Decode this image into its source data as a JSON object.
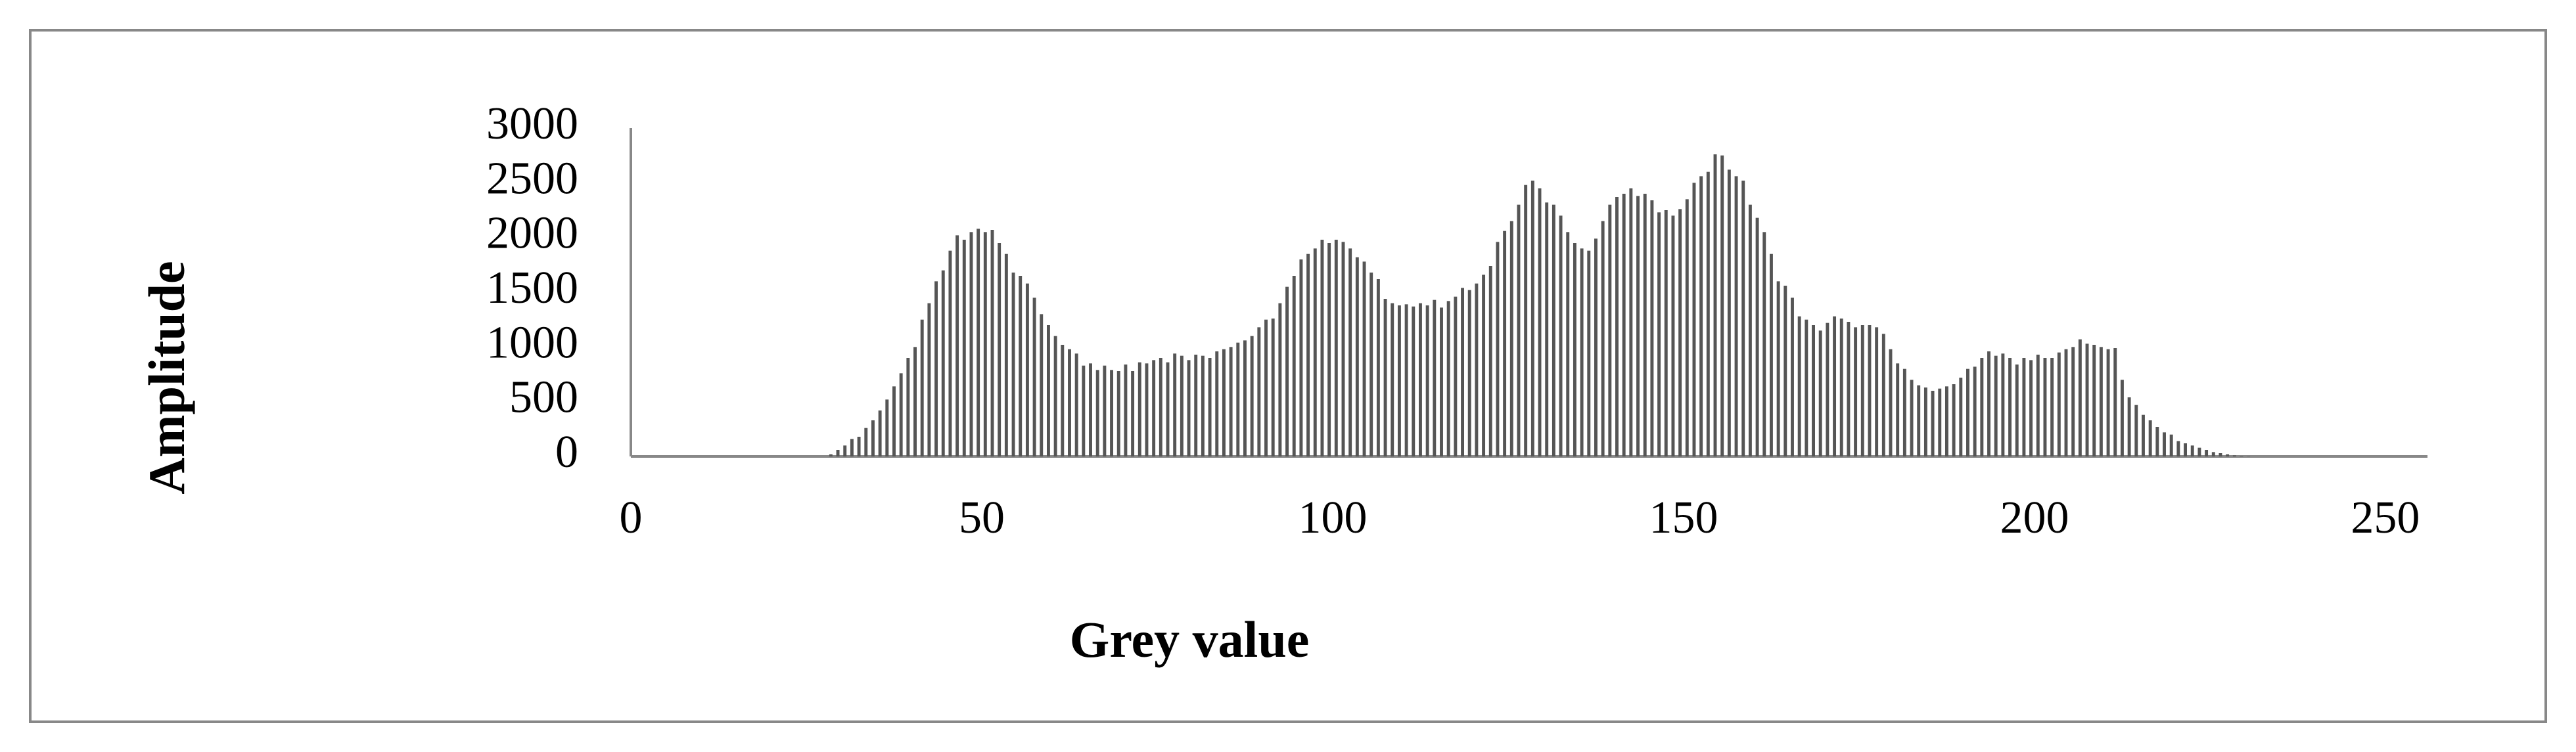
{
  "chart_data": {
    "type": "bar",
    "x_label": "Grey value",
    "y_label": "Amplitude",
    "x": [
      0,
      1,
      2,
      3,
      4,
      5,
      6,
      7,
      8,
      9,
      10,
      11,
      12,
      13,
      14,
      15,
      16,
      17,
      18,
      19,
      20,
      21,
      22,
      23,
      24,
      25,
      26,
      27,
      28,
      29,
      30,
      31,
      32,
      33,
      34,
      35,
      36,
      37,
      38,
      39,
      40,
      41,
      42,
      43,
      44,
      45,
      46,
      47,
      48,
      49,
      50,
      51,
      52,
      53,
      54,
      55,
      56,
      57,
      58,
      59,
      60,
      61,
      62,
      63,
      64,
      65,
      66,
      67,
      68,
      69,
      70,
      71,
      72,
      73,
      74,
      75,
      76,
      77,
      78,
      79,
      80,
      81,
      82,
      83,
      84,
      85,
      86,
      87,
      88,
      89,
      90,
      91,
      92,
      93,
      94,
      95,
      96,
      97,
      98,
      99,
      100,
      101,
      102,
      103,
      104,
      105,
      106,
      107,
      108,
      109,
      110,
      111,
      112,
      113,
      114,
      115,
      116,
      117,
      118,
      119,
      120,
      121,
      122,
      123,
      124,
      125,
      126,
      127,
      128,
      129,
      130,
      131,
      132,
      133,
      134,
      135,
      136,
      137,
      138,
      139,
      140,
      141,
      142,
      143,
      144,
      145,
      146,
      147,
      148,
      149,
      150,
      151,
      152,
      153,
      154,
      155,
      156,
      157,
      158,
      159,
      160,
      161,
      162,
      163,
      164,
      165,
      166,
      167,
      168,
      169,
      170,
      171,
      172,
      173,
      174,
      175,
      176,
      177,
      178,
      179,
      180,
      181,
      182,
      183,
      184,
      185,
      186,
      187,
      188,
      189,
      190,
      191,
      192,
      193,
      194,
      195,
      196,
      197,
      198,
      199,
      200,
      201,
      202,
      203,
      204,
      205,
      206,
      207,
      208,
      209,
      210,
      211,
      212,
      213,
      214,
      215,
      216,
      217,
      218,
      219,
      220,
      221,
      222,
      223,
      224,
      225,
      226,
      227,
      228,
      229,
      230,
      231,
      232,
      233,
      234,
      235,
      236,
      237,
      238,
      239,
      240,
      241,
      242,
      243,
      244,
      245,
      246,
      247,
      248,
      249,
      250,
      251,
      252,
      253,
      254,
      255
    ],
    "values": [
      0,
      0,
      0,
      0,
      0,
      0,
      0,
      0,
      0,
      0,
      0,
      0,
      0,
      0,
      0,
      0,
      0,
      0,
      0,
      0,
      0,
      0,
      0,
      0,
      0,
      0,
      0,
      0,
      20,
      60,
      100,
      160,
      180,
      260,
      330,
      420,
      520,
      640,
      760,
      900,
      1000,
      1250,
      1400,
      1600,
      1700,
      1880,
      2020,
      1980,
      2050,
      2080,
      2050,
      2070,
      1950,
      1850,
      1680,
      1650,
      1580,
      1450,
      1300,
      1200,
      1100,
      1020,
      980,
      940,
      830,
      850,
      790,
      830,
      790,
      780,
      840,
      780,
      860,
      850,
      880,
      900,
      860,
      940,
      920,
      880,
      930,
      920,
      900,
      960,
      980,
      1000,
      1040,
      1060,
      1100,
      1180,
      1250,
      1260,
      1400,
      1550,
      1650,
      1800,
      1850,
      1900,
      1980,
      1950,
      1980,
      1960,
      1900,
      1820,
      1780,
      1680,
      1620,
      1440,
      1400,
      1380,
      1390,
      1370,
      1400,
      1380,
      1430,
      1360,
      1420,
      1460,
      1540,
      1520,
      1580,
      1660,
      1740,
      1960,
      2060,
      2150,
      2300,
      2480,
      2520,
      2450,
      2320,
      2300,
      2200,
      2050,
      1950,
      1900,
      1880,
      1990,
      2150,
      2300,
      2370,
      2400,
      2450,
      2380,
      2400,
      2340,
      2230,
      2250,
      2200,
      2260,
      2350,
      2500,
      2560,
      2600,
      2760,
      2750,
      2620,
      2560,
      2520,
      2300,
      2180,
      2050,
      1850,
      1600,
      1560,
      1450,
      1280,
      1250,
      1200,
      1150,
      1220,
      1280,
      1260,
      1230,
      1180,
      1200,
      1200,
      1180,
      1120,
      980,
      850,
      800,
      700,
      650,
      630,
      600,
      620,
      640,
      660,
      720,
      800,
      820,
      900,
      960,
      920,
      940,
      900,
      840,
      900,
      880,
      930,
      900,
      900,
      950,
      980,
      1000,
      1070,
      1030,
      1020,
      1000,
      980,
      990,
      700,
      540,
      470,
      380,
      330,
      270,
      220,
      200,
      140,
      120,
      100,
      80,
      60,
      40,
      30,
      20,
      10,
      5,
      2,
      0,
      0,
      0,
      0,
      0,
      0,
      0,
      0,
      0,
      0,
      0,
      0,
      0,
      0,
      0,
      0,
      0,
      0,
      0,
      0,
      0,
      0,
      0,
      0,
      0
    ],
    "color": "#555555",
    "xlim": [
      0,
      256
    ],
    "xticks": [
      0,
      50,
      100,
      150,
      200,
      250
    ],
    "ylim": [
      0,
      3000
    ],
    "yticks": [
      0,
      500,
      1000,
      1500,
      2000,
      2500,
      3000
    ]
  }
}
